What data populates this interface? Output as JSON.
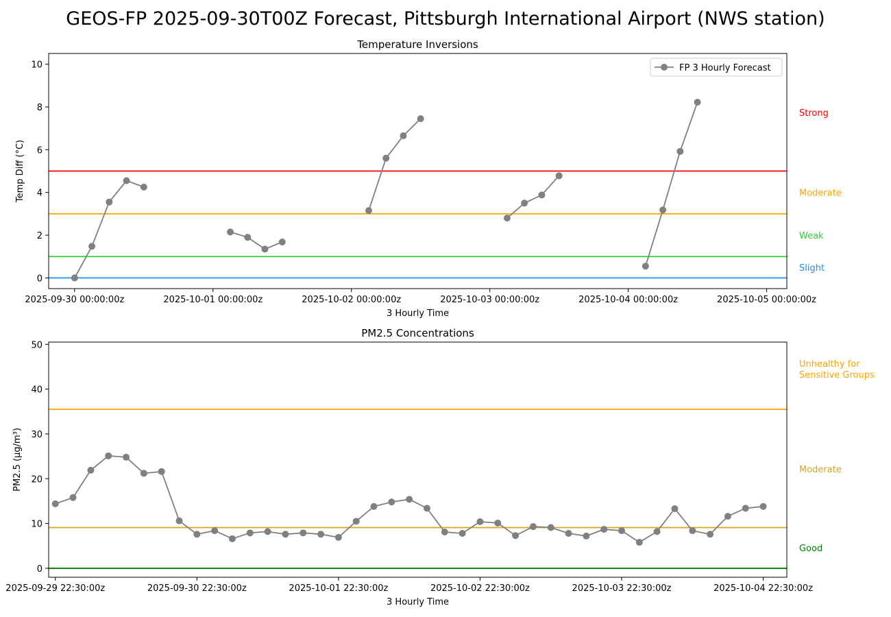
{
  "figure_title": "GEOS-FP 2025-09-30T00Z Forecast, Pittsburgh International Airport (NWS station)",
  "chart_data": [
    {
      "type": "line",
      "title": "Temperature Inversions",
      "xlabel": "3 Hourly Time",
      "ylabel": "Temp Diff (°C)",
      "ylim": [
        -0.5,
        10.5
      ],
      "xlim": [
        "2025-09-29 19:30:00z",
        "2025-10-05 03:30:00z"
      ],
      "yticks": [
        0,
        2,
        4,
        6,
        8,
        10
      ],
      "xticks": [
        {
          "t": "2025-09-30 00:00:00z",
          "label": "2025-09-30 00:00:00z"
        },
        {
          "t": "2025-10-01 00:00:00z",
          "label": "2025-10-01 00:00:00z"
        },
        {
          "t": "2025-10-02 00:00:00z",
          "label": "2025-10-02 00:00:00z"
        },
        {
          "t": "2025-10-03 00:00:00z",
          "label": "2025-10-03 00:00:00z"
        },
        {
          "t": "2025-10-04 00:00:00z",
          "label": "2025-10-04 00:00:00z"
        },
        {
          "t": "2025-10-05 00:00:00z",
          "label": "2025-10-05 00:00:00z"
        }
      ],
      "legend": {
        "label": "FP 3 Hourly Forecast",
        "position": "top-right"
      },
      "series": [
        {
          "name": "FP 3 Hourly Forecast",
          "color": "#808080",
          "segments": [
            [
              [
                "2025-09-30 00:00:00z",
                0.0
              ],
              [
                "2025-09-30 03:00:00z",
                1.48
              ],
              [
                "2025-09-30 06:00:00z",
                3.55
              ],
              [
                "2025-09-30 09:00:00z",
                4.55
              ],
              [
                "2025-09-30 12:00:00z",
                4.25
              ]
            ],
            [
              [
                "2025-10-01 03:00:00z",
                2.15
              ],
              [
                "2025-10-01 06:00:00z",
                1.9
              ],
              [
                "2025-10-01 09:00:00z",
                1.35
              ],
              [
                "2025-10-01 12:00:00z",
                1.68
              ]
            ],
            [
              [
                "2025-10-02 03:00:00z",
                3.15
              ],
              [
                "2025-10-02 06:00:00z",
                5.6
              ],
              [
                "2025-10-02 09:00:00z",
                6.65
              ],
              [
                "2025-10-02 12:00:00z",
                7.45
              ]
            ],
            [
              [
                "2025-10-03 03:00:00z",
                2.8
              ],
              [
                "2025-10-03 06:00:00z",
                3.5
              ],
              [
                "2025-10-03 09:00:00z",
                3.88
              ],
              [
                "2025-10-03 12:00:00z",
                4.78
              ]
            ],
            [
              [
                "2025-10-04 03:00:00z",
                0.55
              ],
              [
                "2025-10-04 06:00:00z",
                3.18
              ],
              [
                "2025-10-04 09:00:00z",
                5.92
              ],
              [
                "2025-10-04 12:00:00z",
                8.22
              ]
            ]
          ]
        }
      ],
      "thresholds": [
        {
          "value": 0,
          "color": "#1e90ff",
          "label": "Slight",
          "label_y": 0.5
        },
        {
          "value": 1,
          "color": "#32cd32",
          "label": "Weak",
          "label_y": 2.0
        },
        {
          "value": 3,
          "color": "#ffa500",
          "label": "Moderate",
          "label_y": 4.0
        },
        {
          "value": 5,
          "color": "#ff0000",
          "label": "Strong",
          "label_y": 7.75
        }
      ]
    },
    {
      "type": "line",
      "title": "PM2.5 Concentrations",
      "xlabel": "3 Hourly Time",
      "ylabel": "PM2.5 (μg/m³)",
      "ylim": [
        -2,
        50.5
      ],
      "xlim": [
        "2025-09-29 21:22:00z",
        "2025-10-05 02:30:00z"
      ],
      "yticks": [
        0,
        10,
        20,
        30,
        40,
        50
      ],
      "xticks": [
        {
          "t": "2025-09-29 22:30:00z",
          "label": "2025-09-29 22:30:00z"
        },
        {
          "t": "2025-09-30 22:30:00z",
          "label": "2025-09-30 22:30:00z"
        },
        {
          "t": "2025-10-01 22:30:00z",
          "label": "2025-10-01 22:30:00z"
        },
        {
          "t": "2025-10-02 22:30:00z",
          "label": "2025-10-02 22:30:00z"
        },
        {
          "t": "2025-10-03 22:30:00z",
          "label": "2025-10-03 22:30:00z"
        },
        {
          "t": "2025-10-04 22:30:00z",
          "label": "2025-10-04 22:30:00z"
        }
      ],
      "series": [
        {
          "color": "#808080",
          "start": "2025-09-29 22:30:00z",
          "step_hours": 3,
          "values": [
            14.4,
            15.8,
            21.9,
            25.1,
            24.8,
            21.2,
            21.6,
            10.6,
            7.6,
            8.4,
            6.6,
            7.9,
            8.2,
            7.6,
            7.9,
            7.6,
            6.9,
            10.5,
            13.8,
            14.8,
            15.4,
            13.4,
            8.1,
            7.8,
            10.4,
            10.1,
            7.3,
            9.3,
            9.1,
            7.8,
            7.2,
            8.7,
            8.4,
            5.8,
            8.2,
            13.3,
            8.4,
            7.6,
            11.6,
            13.4,
            13.8
          ]
        }
      ],
      "thresholds": [
        {
          "value": 0,
          "color": "#008000",
          "label": "Good",
          "label_y": 4.6
        },
        {
          "value": 9.1,
          "color": "#daa520",
          "label": "Moderate",
          "label_y": 22.2
        },
        {
          "value": 35.5,
          "color": "#ffa500",
          "label": "Unhealthy for\nSensitive Groups",
          "label_y": 44.5
        }
      ]
    }
  ]
}
